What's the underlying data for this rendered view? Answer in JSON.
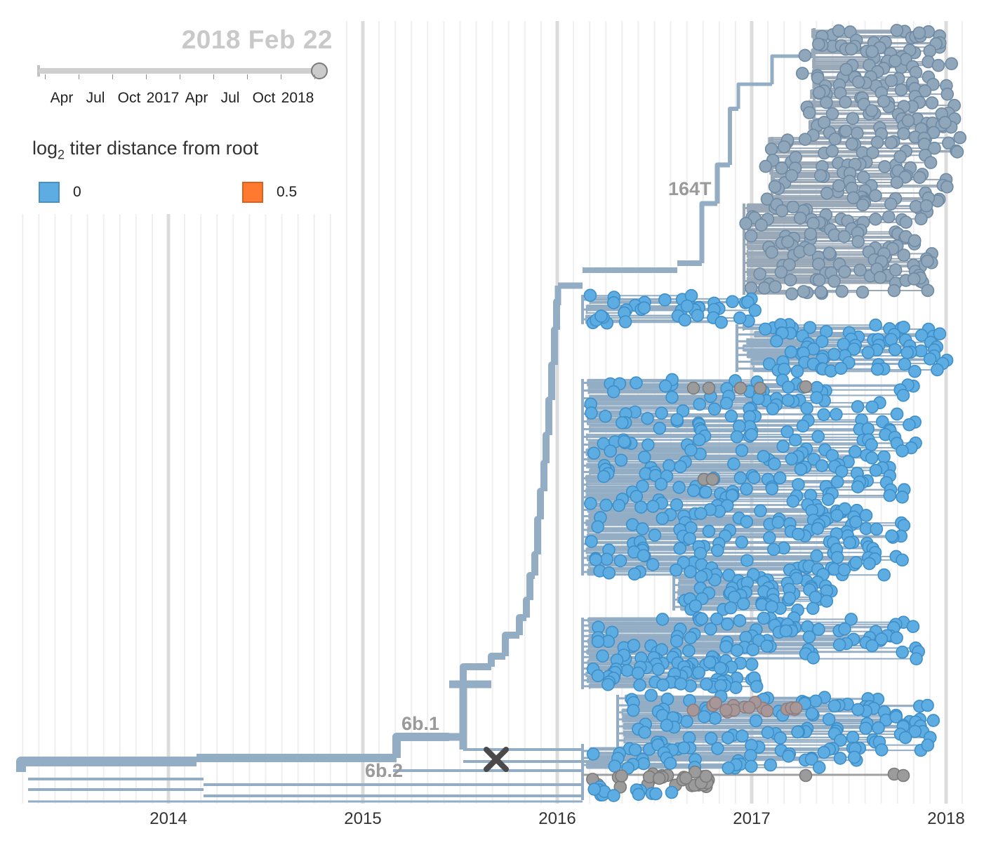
{
  "date_display": "2018 Feb 22",
  "slider": {
    "tick_labels": [
      "Apr",
      "Jul",
      "Oct",
      "2017",
      "Apr",
      "Jul",
      "Oct",
      "2018"
    ]
  },
  "legend": {
    "title_prefix": "log",
    "title_sub": "2",
    "title_suffix": " titer distance from root",
    "items": [
      {
        "label": "0",
        "color": "#5dade2"
      },
      {
        "label": "0.5",
        "color": "#ff7a2f"
      }
    ]
  },
  "colors": {
    "branch": "#93aec4",
    "tip_blue": "#5dade2",
    "tip_gray": "#8fa6bb",
    "tip_gray_dark": "#9b9b9b",
    "tip_mauve": "#a89799",
    "grid_major": "#dcdcdc",
    "grid_minor": "#efefef"
  },
  "chart_data": {
    "type": "scatter",
    "title": "",
    "xlabel": "",
    "ylabel": "",
    "x_axis": {
      "type": "time",
      "range": [
        "2013-04",
        "2018-03"
      ],
      "tick_labels": [
        "2014",
        "2015",
        "2016",
        "2017",
        "2018"
      ],
      "grid": true
    },
    "color_by": "log2 titer distance from root",
    "color_scale": [
      {
        "value": 0,
        "color": "#5dade2"
      },
      {
        "value": 0.5,
        "color": "#ff7a2f"
      }
    ],
    "clade_labels": [
      "164T",
      "6b.1",
      "6b.2"
    ],
    "tip_collection_dates_range": [
      "2016-02",
      "2017-12"
    ],
    "clades": [
      {
        "name": "164T",
        "tip_count_est": 330,
        "x_span": [
          "2016-09",
          "2018-01"
        ]
      },
      {
        "name": "6b.1",
        "tip_count_est": 1050,
        "x_span": [
          "2016-02",
          "2017-12"
        ]
      },
      {
        "name": "6b.2",
        "tip_count_est": 40,
        "x_span": [
          "2016-02",
          "2017-10"
        ]
      }
    ]
  }
}
